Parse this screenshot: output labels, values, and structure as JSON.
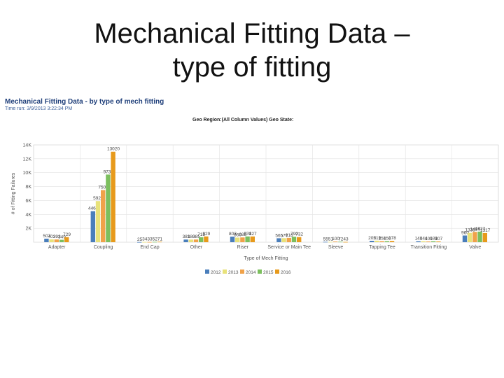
{
  "slide": {
    "title_line1": "Mechanical Fitting Data –",
    "title_line2": "type of fitting"
  },
  "report": {
    "title": "Mechanical Fitting Data - by type of mech fitting",
    "time_run": "Time run: 3/9/2013 3:22:34 PM",
    "filter": "Geo Region:(All Column Values) Geo State:"
  },
  "chart_data": {
    "type": "bar",
    "xlabel": "Type of Mech Fitting",
    "ylabel": "# of Fitting Failures",
    "ylim": [
      0,
      14000
    ],
    "yticks": [
      "",
      "2K",
      "4K",
      "6K",
      "8K",
      "10K",
      "12K",
      "14K"
    ],
    "grid": true,
    "legend": "bottom",
    "categories": [
      "Adapter",
      "Coupling",
      "End Cap",
      "Other",
      "Riser",
      "Service or Main Tee",
      "Sleeve",
      "Tapping Tee",
      "Transition Fitting",
      "Valve"
    ],
    "series": [
      {
        "name": "2012",
        "color": "#4a7ebb",
        "values": [
          507,
          4461,
          25,
          381,
          803,
          565,
          55,
          205,
          140,
          960
        ]
      },
      {
        "name": "2013",
        "color": "#e8e27a",
        "values": [
          403,
          5921,
          34,
          380,
          660,
          577,
          51,
          219,
          144,
          1338
        ]
      },
      {
        "name": "2014",
        "color": "#f0a24a",
        "values": [
          393,
          7500,
          33,
          385,
          688,
          618,
          100,
          150,
          109,
          1484
        ]
      },
      {
        "name": "2015",
        "color": "#7cbf5e",
        "values": [
          349,
          9731,
          52,
          713,
          831,
          790,
          72,
          150,
          138,
          1527
        ]
      },
      {
        "name": "2016",
        "color": "#e79a1c",
        "values": [
          729,
          13020,
          71,
          829,
          827,
          732,
          43,
          178,
          107,
          1317
        ]
      }
    ],
    "labels": [
      [
        "507",
        "403",
        "393",
        "349",
        "729"
      ],
      [
        "4461",
        "5921",
        "7500",
        "9731",
        "13020"
      ],
      [
        "25",
        "34",
        "33",
        "52",
        "71"
      ],
      [
        "381",
        "380",
        "385",
        "713",
        "829"
      ],
      [
        "803",
        "660",
        "688",
        "831",
        "827"
      ],
      [
        "565",
        "577",
        "618",
        "790",
        "732"
      ],
      [
        "55",
        "51",
        "100",
        "72",
        "43"
      ],
      [
        "205",
        "219",
        "150",
        "150",
        "178"
      ],
      [
        "140",
        "144",
        "109",
        "138",
        "107"
      ],
      [
        "960",
        "1338",
        "1484",
        "1527",
        "1317"
      ]
    ]
  }
}
